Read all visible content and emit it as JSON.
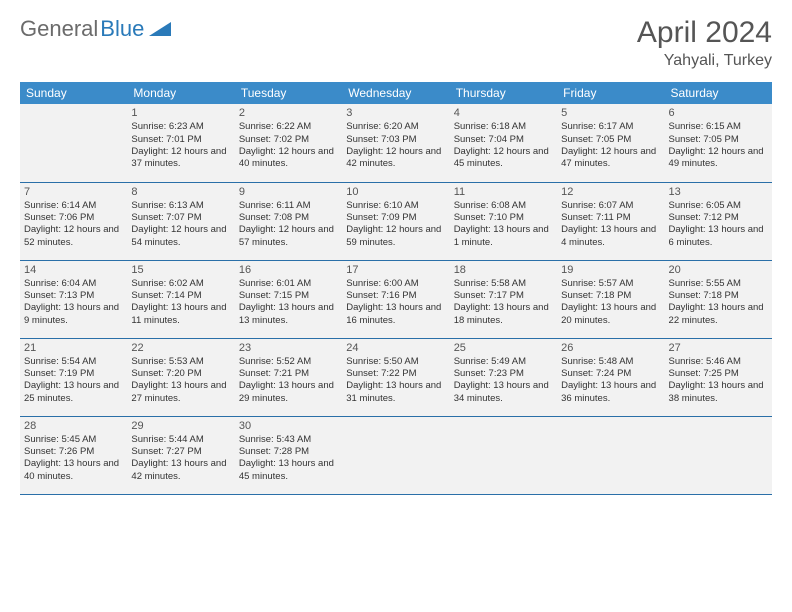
{
  "brand": {
    "part1": "General",
    "part2": "Blue"
  },
  "title": "April 2024",
  "location": "Yahyali, Turkey",
  "colors": {
    "header_bg": "#3b8bc9",
    "header_text": "#ffffff",
    "cell_bg": "#f2f2f2",
    "border": "#2a6fa8",
    "title_text": "#555555",
    "body_text": "#333333",
    "logo_gray": "#6b6b6b",
    "logo_blue": "#2a7ab9"
  },
  "day_names": [
    "Sunday",
    "Monday",
    "Tuesday",
    "Wednesday",
    "Thursday",
    "Friday",
    "Saturday"
  ],
  "weeks": [
    [
      null,
      {
        "n": "1",
        "sr": "Sunrise: 6:23 AM",
        "ss": "Sunset: 7:01 PM",
        "dl": "Daylight: 12 hours and 37 minutes."
      },
      {
        "n": "2",
        "sr": "Sunrise: 6:22 AM",
        "ss": "Sunset: 7:02 PM",
        "dl": "Daylight: 12 hours and 40 minutes."
      },
      {
        "n": "3",
        "sr": "Sunrise: 6:20 AM",
        "ss": "Sunset: 7:03 PM",
        "dl": "Daylight: 12 hours and 42 minutes."
      },
      {
        "n": "4",
        "sr": "Sunrise: 6:18 AM",
        "ss": "Sunset: 7:04 PM",
        "dl": "Daylight: 12 hours and 45 minutes."
      },
      {
        "n": "5",
        "sr": "Sunrise: 6:17 AM",
        "ss": "Sunset: 7:05 PM",
        "dl": "Daylight: 12 hours and 47 minutes."
      },
      {
        "n": "6",
        "sr": "Sunrise: 6:15 AM",
        "ss": "Sunset: 7:05 PM",
        "dl": "Daylight: 12 hours and 49 minutes."
      }
    ],
    [
      {
        "n": "7",
        "sr": "Sunrise: 6:14 AM",
        "ss": "Sunset: 7:06 PM",
        "dl": "Daylight: 12 hours and 52 minutes."
      },
      {
        "n": "8",
        "sr": "Sunrise: 6:13 AM",
        "ss": "Sunset: 7:07 PM",
        "dl": "Daylight: 12 hours and 54 minutes."
      },
      {
        "n": "9",
        "sr": "Sunrise: 6:11 AM",
        "ss": "Sunset: 7:08 PM",
        "dl": "Daylight: 12 hours and 57 minutes."
      },
      {
        "n": "10",
        "sr": "Sunrise: 6:10 AM",
        "ss": "Sunset: 7:09 PM",
        "dl": "Daylight: 12 hours and 59 minutes."
      },
      {
        "n": "11",
        "sr": "Sunrise: 6:08 AM",
        "ss": "Sunset: 7:10 PM",
        "dl": "Daylight: 13 hours and 1 minute."
      },
      {
        "n": "12",
        "sr": "Sunrise: 6:07 AM",
        "ss": "Sunset: 7:11 PM",
        "dl": "Daylight: 13 hours and 4 minutes."
      },
      {
        "n": "13",
        "sr": "Sunrise: 6:05 AM",
        "ss": "Sunset: 7:12 PM",
        "dl": "Daylight: 13 hours and 6 minutes."
      }
    ],
    [
      {
        "n": "14",
        "sr": "Sunrise: 6:04 AM",
        "ss": "Sunset: 7:13 PM",
        "dl": "Daylight: 13 hours and 9 minutes."
      },
      {
        "n": "15",
        "sr": "Sunrise: 6:02 AM",
        "ss": "Sunset: 7:14 PM",
        "dl": "Daylight: 13 hours and 11 minutes."
      },
      {
        "n": "16",
        "sr": "Sunrise: 6:01 AM",
        "ss": "Sunset: 7:15 PM",
        "dl": "Daylight: 13 hours and 13 minutes."
      },
      {
        "n": "17",
        "sr": "Sunrise: 6:00 AM",
        "ss": "Sunset: 7:16 PM",
        "dl": "Daylight: 13 hours and 16 minutes."
      },
      {
        "n": "18",
        "sr": "Sunrise: 5:58 AM",
        "ss": "Sunset: 7:17 PM",
        "dl": "Daylight: 13 hours and 18 minutes."
      },
      {
        "n": "19",
        "sr": "Sunrise: 5:57 AM",
        "ss": "Sunset: 7:18 PM",
        "dl": "Daylight: 13 hours and 20 minutes."
      },
      {
        "n": "20",
        "sr": "Sunrise: 5:55 AM",
        "ss": "Sunset: 7:18 PM",
        "dl": "Daylight: 13 hours and 22 minutes."
      }
    ],
    [
      {
        "n": "21",
        "sr": "Sunrise: 5:54 AM",
        "ss": "Sunset: 7:19 PM",
        "dl": "Daylight: 13 hours and 25 minutes."
      },
      {
        "n": "22",
        "sr": "Sunrise: 5:53 AM",
        "ss": "Sunset: 7:20 PM",
        "dl": "Daylight: 13 hours and 27 minutes."
      },
      {
        "n": "23",
        "sr": "Sunrise: 5:52 AM",
        "ss": "Sunset: 7:21 PM",
        "dl": "Daylight: 13 hours and 29 minutes."
      },
      {
        "n": "24",
        "sr": "Sunrise: 5:50 AM",
        "ss": "Sunset: 7:22 PM",
        "dl": "Daylight: 13 hours and 31 minutes."
      },
      {
        "n": "25",
        "sr": "Sunrise: 5:49 AM",
        "ss": "Sunset: 7:23 PM",
        "dl": "Daylight: 13 hours and 34 minutes."
      },
      {
        "n": "26",
        "sr": "Sunrise: 5:48 AM",
        "ss": "Sunset: 7:24 PM",
        "dl": "Daylight: 13 hours and 36 minutes."
      },
      {
        "n": "27",
        "sr": "Sunrise: 5:46 AM",
        "ss": "Sunset: 7:25 PM",
        "dl": "Daylight: 13 hours and 38 minutes."
      }
    ],
    [
      {
        "n": "28",
        "sr": "Sunrise: 5:45 AM",
        "ss": "Sunset: 7:26 PM",
        "dl": "Daylight: 13 hours and 40 minutes."
      },
      {
        "n": "29",
        "sr": "Sunrise: 5:44 AM",
        "ss": "Sunset: 7:27 PM",
        "dl": "Daylight: 13 hours and 42 minutes."
      },
      {
        "n": "30",
        "sr": "Sunrise: 5:43 AM",
        "ss": "Sunset: 7:28 PM",
        "dl": "Daylight: 13 hours and 45 minutes."
      },
      null,
      null,
      null,
      null
    ]
  ]
}
